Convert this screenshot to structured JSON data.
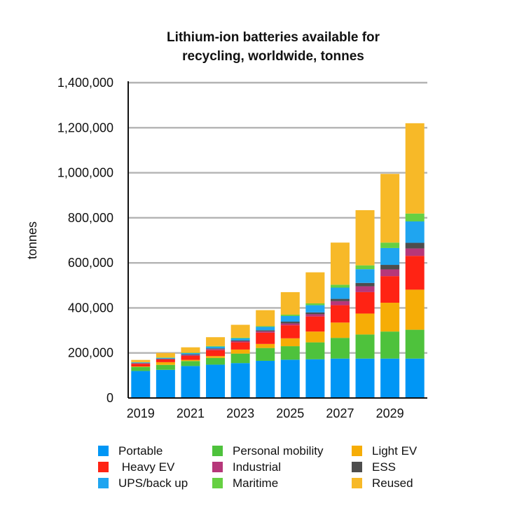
{
  "chart_data": {
    "type": "bar",
    "stacked": true,
    "title": "Lithium-ion batteries available for recycling, worldwide, tonnes",
    "title_lines": [
      "Lithium-ion batteries available for",
      "recycling, worldwide, tonnes"
    ],
    "xlabel": "",
    "ylabel": "tonnes",
    "ylim": [
      0,
      1400000
    ],
    "yticks": [
      0,
      200000,
      400000,
      600000,
      800000,
      1000000,
      1200000,
      1400000
    ],
    "ytick_labels": [
      "0",
      "200,000",
      "400,000",
      "600,000",
      "800,000",
      "1,000,000",
      "1,200,000",
      "1,400,000"
    ],
    "grid": true,
    "legend_position": "bottom",
    "categories": [
      "2019",
      "2020",
      "2021",
      "2022",
      "2023",
      "2024",
      "2025",
      "2026",
      "2027",
      "2028",
      "2029",
      "2030"
    ],
    "xtick_labels": [
      "2019",
      "",
      "2021",
      "",
      "2023",
      "",
      "2025",
      "",
      "2027",
      "",
      "2029",
      ""
    ],
    "series": [
      {
        "name": "Portable",
        "color": "#0096f5",
        "values": [
          120000,
          125000,
          142000,
          148000,
          155000,
          165000,
          170000,
          172000,
          175000,
          175000,
          175000,
          175000
        ]
      },
      {
        "name": "Personal mobility",
        "color": "#4ec23c",
        "values": [
          18000,
          22000,
          22000,
          30000,
          42000,
          57000,
          60000,
          75000,
          92000,
          107000,
          120000,
          128000
        ]
      },
      {
        "name": "Light EV",
        "color": "#f6ad06",
        "values": [
          2000,
          12000,
          5000,
          8000,
          18000,
          18000,
          35000,
          48000,
          68000,
          93000,
          128000,
          178000
        ]
      },
      {
        "name": "Heavy EV",
        "color": "#ff2314",
        "values": [
          12000,
          12000,
          18000,
          26000,
          32000,
          50000,
          58000,
          67000,
          77000,
          95000,
          118000,
          150000
        ]
      },
      {
        "name": "Industrial",
        "color": "#b6377a",
        "values": [
          2000,
          2000,
          4000,
          5000,
          5000,
          6000,
          8000,
          10000,
          18000,
          26000,
          30000,
          33000
        ]
      },
      {
        "name": "ESS",
        "color": "#4d4d4d",
        "values": [
          1000,
          2000,
          3000,
          3000,
          4000,
          5000,
          8000,
          8000,
          10000,
          15000,
          20000,
          25000
        ]
      },
      {
        "name": "UPS/back up",
        "color": "#1fa5f0",
        "values": [
          3000,
          3000,
          5000,
          8000,
          9000,
          15000,
          25000,
          32000,
          50000,
          61000,
          75000,
          95000
        ]
      },
      {
        "name": "Maritime",
        "color": "#66d042",
        "values": [
          1000,
          2000,
          2000,
          3000,
          3000,
          3000,
          6000,
          8000,
          13000,
          17000,
          24000,
          35000
        ]
      },
      {
        "name": "Reused",
        "color": "#f7b928",
        "values": [
          10000,
          20000,
          24000,
          39000,
          57000,
          71000,
          100000,
          138000,
          187000,
          245000,
          305000,
          401000
        ]
      }
    ]
  }
}
